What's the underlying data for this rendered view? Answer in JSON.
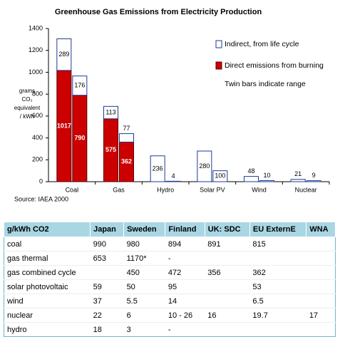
{
  "chart_data": {
    "type": "bar",
    "title": "Greenhouse Gas Emissions from Electricity Production",
    "y_label": [
      "grams",
      "CO₂",
      "equivalent",
      "/ kWh"
    ],
    "categories": [
      "Coal",
      "Gas",
      "Hydro",
      "Solar PV",
      "Wind",
      "Nuclear"
    ],
    "series": [
      {
        "name": "Indirect, from life cycle",
        "color": "#ffffff",
        "edge": "#1f3a93",
        "values": [
          [
            289,
            176
          ],
          [
            113,
            77
          ],
          [
            236,
            4
          ],
          [
            280,
            100
          ],
          [
            48,
            10
          ],
          [
            21,
            9
          ]
        ]
      },
      {
        "name": "Direct emissions from burning",
        "color": "#cc0000",
        "edge": "#5a0000",
        "values": [
          [
            1017,
            790
          ],
          [
            575,
            362
          ],
          [
            null,
            null
          ],
          [
            null,
            null
          ],
          [
            null,
            null
          ],
          [
            null,
            null
          ]
        ]
      }
    ],
    "ylim": [
      0,
      1400
    ],
    "yticks": [
      0,
      200,
      400,
      600,
      800,
      1000,
      1200,
      1400
    ],
    "grid": false,
    "legend": "upper right",
    "annotation": "Twin bars indicate range",
    "source": "Source: IAEA 2000"
  },
  "table": {
    "header": [
      "g/kWh CO2",
      "Japan",
      "Sweden",
      "Finland",
      "UK: SDC",
      "EU ExternE",
      "WNA"
    ],
    "rows": [
      [
        "coal",
        "990",
        "980",
        "894",
        "891",
        "815",
        null
      ],
      [
        "gas thermal",
        "653",
        "1170*",
        "-",
        null,
        null,
        null
      ],
      [
        "gas combined cycle",
        null,
        "450",
        "472",
        "356",
        "362",
        null
      ],
      [
        "solar photovoltaic",
        "59",
        "50",
        "95",
        null,
        "53",
        null
      ],
      [
        "wind",
        "37",
        "5.5",
        "14",
        null,
        "6.5",
        null
      ],
      [
        "nuclear",
        "22",
        "6",
        "10 - 26",
        "16",
        "19.7",
        "17"
      ],
      [
        "hydro",
        "18",
        "3",
        "-",
        null,
        null,
        null
      ]
    ]
  }
}
